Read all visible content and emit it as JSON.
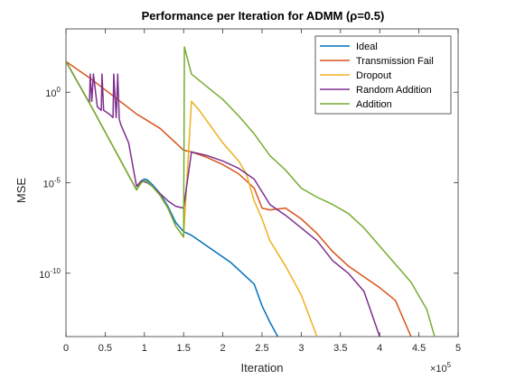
{
  "chart_data": {
    "type": "line",
    "title": "Performance per Iteration for ADMM (ρ=0.5)",
    "xlabel": "Iteration",
    "ylabel": "MSE",
    "x_exponent_label": "×10",
    "x_exponent_power": "5",
    "x_multiplier": 100000,
    "y_scale": "log",
    "xlim": [
      0,
      5
    ],
    "ylim_exp": [
      -13.5,
      3.5
    ],
    "x_ticks": [
      0,
      0.5,
      1,
      1.5,
      2,
      2.5,
      3,
      3.5,
      4,
      4.5,
      5
    ],
    "x_tick_labels": [
      "0",
      "0.5",
      "1",
      "1.5",
      "2",
      "2.5",
      "3",
      "3.5",
      "4",
      "4.5",
      "5"
    ],
    "y_ticks_exp": [
      0,
      -5,
      -10
    ],
    "y_tick_labels": [
      {
        "base": "10",
        "exp": "0"
      },
      {
        "base": "10",
        "exp": "-5"
      },
      {
        "base": "10",
        "exp": "-10"
      }
    ],
    "grid": false,
    "legend_position": "top-right",
    "series": [
      {
        "name": "Ideal",
        "color": "#0072BD",
        "x": [
          0,
          0.3,
          0.5,
          0.7,
          0.9,
          0.96,
          1.0,
          1.04,
          1.1,
          1.2,
          1.3,
          1.4,
          1.5,
          1.6,
          1.7,
          1.8,
          1.9,
          2.0,
          2.1,
          2.2,
          2.3,
          2.4,
          2.5,
          2.6,
          2.7
        ],
        "y_log10": [
          1.7,
          -0.6,
          -2.2,
          -3.8,
          -5.4,
          -4.9,
          -4.8,
          -4.85,
          -5.1,
          -5.6,
          -6.3,
          -7.2,
          -7.7,
          -7.9,
          -8.2,
          -8.5,
          -8.8,
          -9.1,
          -9.4,
          -9.8,
          -10.2,
          -10.6,
          -11.8,
          -12.7,
          -13.5
        ]
      },
      {
        "name": "Transmission Fail",
        "color": "#D95319",
        "x": [
          0,
          0.3,
          0.6,
          0.9,
          1.2,
          1.5,
          1.6,
          1.8,
          2.0,
          2.2,
          2.4,
          2.5,
          2.6,
          2.8,
          3.0,
          3.2,
          3.4,
          3.6,
          3.8,
          4.0,
          4.2,
          4.4
        ],
        "y_log10": [
          1.7,
          0.8,
          -0.2,
          -1.2,
          -2.0,
          -3.2,
          -3.3,
          -3.6,
          -4.0,
          -4.5,
          -5.3,
          -6.4,
          -6.5,
          -6.4,
          -7.0,
          -7.8,
          -8.8,
          -9.6,
          -10.2,
          -10.8,
          -11.5,
          -13.5
        ]
      },
      {
        "name": "Dropout",
        "color": "#EDB120",
        "x": [
          0,
          0.3,
          0.5,
          0.7,
          0.9,
          0.96,
          1.0,
          1.04,
          1.1,
          1.2,
          1.3,
          1.4,
          1.5,
          1.6,
          1.7,
          1.8,
          1.9,
          2.0,
          2.1,
          2.2,
          2.3,
          2.4,
          2.5,
          2.6,
          2.8,
          3.0,
          3.2
        ],
        "y_log10": [
          1.7,
          -0.6,
          -2.2,
          -3.8,
          -5.4,
          -5.0,
          -4.9,
          -4.95,
          -5.2,
          -5.7,
          -6.4,
          -7.4,
          -8.0,
          -0.5,
          -1.0,
          -1.6,
          -2.2,
          -2.8,
          -3.3,
          -3.8,
          -4.5,
          -6.0,
          -7.0,
          -8.2,
          -9.6,
          -11.2,
          -13.5
        ]
      },
      {
        "name": "Random Addition",
        "color": "#7E2F8E",
        "x": [
          0,
          0.3,
          0.31,
          0.33,
          0.35,
          0.4,
          0.45,
          0.46,
          0.48,
          0.55,
          0.6,
          0.61,
          0.64,
          0.66,
          0.68,
          0.7,
          0.75,
          0.8,
          0.9,
          0.96,
          1.0,
          1.04,
          1.1,
          1.2,
          1.3,
          1.4,
          1.5,
          1.6,
          1.8,
          2.0,
          2.2,
          2.4,
          2.5,
          2.6,
          2.8,
          3.0,
          3.2,
          3.4,
          3.6,
          3.8,
          4.0
        ],
        "y_log10": [
          1.7,
          -0.6,
          1.0,
          -0.5,
          1.0,
          -0.8,
          -1.0,
          1.0,
          -1.0,
          -1.2,
          -1.4,
          1.0,
          -1.4,
          1.0,
          -1.5,
          -1.8,
          -2.3,
          -2.8,
          -5.2,
          -4.9,
          -4.95,
          -5.0,
          -5.2,
          -5.6,
          -6.0,
          -6.3,
          -6.4,
          -3.3,
          -3.5,
          -3.8,
          -4.2,
          -4.8,
          -5.5,
          -6.2,
          -6.8,
          -7.5,
          -8.2,
          -9.3,
          -10.0,
          -11.0,
          -13.5
        ]
      },
      {
        "name": "Addition",
        "color": "#77AC30",
        "x": [
          0,
          0.3,
          0.5,
          0.7,
          0.9,
          0.96,
          1.0,
          1.04,
          1.1,
          1.2,
          1.3,
          1.4,
          1.5,
          1.51,
          1.6,
          1.8,
          2.0,
          2.2,
          2.4,
          2.6,
          2.8,
          3.0,
          3.2,
          3.4,
          3.6,
          3.8,
          4.0,
          4.2,
          4.4,
          4.6,
          4.7
        ],
        "y_log10": [
          1.7,
          -0.6,
          -2.2,
          -3.8,
          -5.4,
          -5.0,
          -4.9,
          -4.95,
          -5.2,
          -5.7,
          -6.4,
          -7.4,
          -8.0,
          2.5,
          1.0,
          0.3,
          -0.4,
          -1.3,
          -2.3,
          -3.5,
          -4.3,
          -5.3,
          -5.8,
          -6.2,
          -6.7,
          -7.5,
          -8.5,
          -9.5,
          -10.5,
          -12.0,
          -13.5
        ]
      }
    ]
  }
}
